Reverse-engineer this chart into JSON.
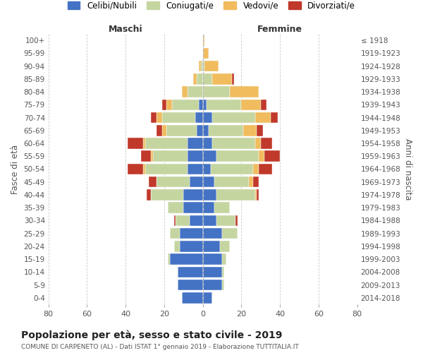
{
  "age_groups": [
    "0-4",
    "5-9",
    "10-14",
    "15-19",
    "20-24",
    "25-29",
    "30-34",
    "35-39",
    "40-44",
    "45-49",
    "50-54",
    "55-59",
    "60-64",
    "65-69",
    "70-74",
    "75-79",
    "80-84",
    "85-89",
    "90-94",
    "95-99",
    "100+"
  ],
  "birth_years": [
    "2014-2018",
    "2009-2013",
    "2004-2008",
    "1999-2003",
    "1994-1998",
    "1989-1993",
    "1984-1988",
    "1979-1983",
    "1974-1978",
    "1969-1973",
    "1964-1968",
    "1959-1963",
    "1954-1958",
    "1949-1953",
    "1944-1948",
    "1939-1943",
    "1934-1938",
    "1929-1933",
    "1924-1928",
    "1919-1923",
    "≤ 1918"
  ],
  "colors": {
    "celibi": "#4472c4",
    "coniugati": "#c5d5a0",
    "vedovi": "#f0bc5e",
    "divorziati": "#c0392b"
  },
  "maschi": {
    "celibi": [
      11,
      13,
      13,
      17,
      12,
      12,
      7,
      10,
      10,
      7,
      8,
      8,
      8,
      3,
      4,
      2,
      0,
      0,
      0,
      0,
      0
    ],
    "coniugati": [
      0,
      0,
      0,
      1,
      3,
      5,
      7,
      8,
      17,
      17,
      22,
      18,
      22,
      16,
      17,
      14,
      8,
      3,
      1,
      0,
      0
    ],
    "vedovi": [
      0,
      0,
      0,
      0,
      0,
      0,
      0,
      0,
      0,
      0,
      1,
      1,
      1,
      2,
      3,
      3,
      3,
      2,
      1,
      0,
      0
    ],
    "divorziati": [
      0,
      0,
      0,
      0,
      0,
      0,
      1,
      0,
      2,
      4,
      8,
      5,
      8,
      3,
      3,
      2,
      0,
      0,
      0,
      0,
      0
    ]
  },
  "femmine": {
    "celibi": [
      5,
      10,
      10,
      10,
      9,
      10,
      7,
      6,
      7,
      6,
      4,
      7,
      5,
      3,
      5,
      2,
      0,
      0,
      0,
      0,
      0
    ],
    "coniugati": [
      0,
      1,
      1,
      2,
      5,
      8,
      10,
      8,
      20,
      18,
      22,
      22,
      22,
      18,
      22,
      18,
      14,
      5,
      1,
      0,
      0
    ],
    "vedovi": [
      0,
      0,
      0,
      0,
      0,
      0,
      0,
      0,
      1,
      2,
      3,
      3,
      3,
      7,
      8,
      10,
      15,
      10,
      7,
      3,
      1
    ],
    "divorziati": [
      0,
      0,
      0,
      0,
      0,
      0,
      1,
      0,
      1,
      3,
      7,
      8,
      6,
      3,
      4,
      3,
      0,
      1,
      0,
      0,
      0
    ]
  },
  "xlim": 80,
  "title": "Popolazione per età, sesso e stato civile - 2019",
  "subtitle": "COMUNE DI CARPENETO (AL) - Dati ISTAT 1° gennaio 2019 - Elaborazione TUTTITALIA.IT",
  "ylabel_left": "Fasce di età",
  "ylabel_right": "Anni di nascita",
  "xlabel_maschi": "Maschi",
  "xlabel_femmine": "Femmine",
  "legend_labels": [
    "Celibi/Nubili",
    "Coniugati/e",
    "Vedovi/e",
    "Divorziati/e"
  ],
  "bg_color": "#ffffff",
  "grid_color": "#cccccc"
}
